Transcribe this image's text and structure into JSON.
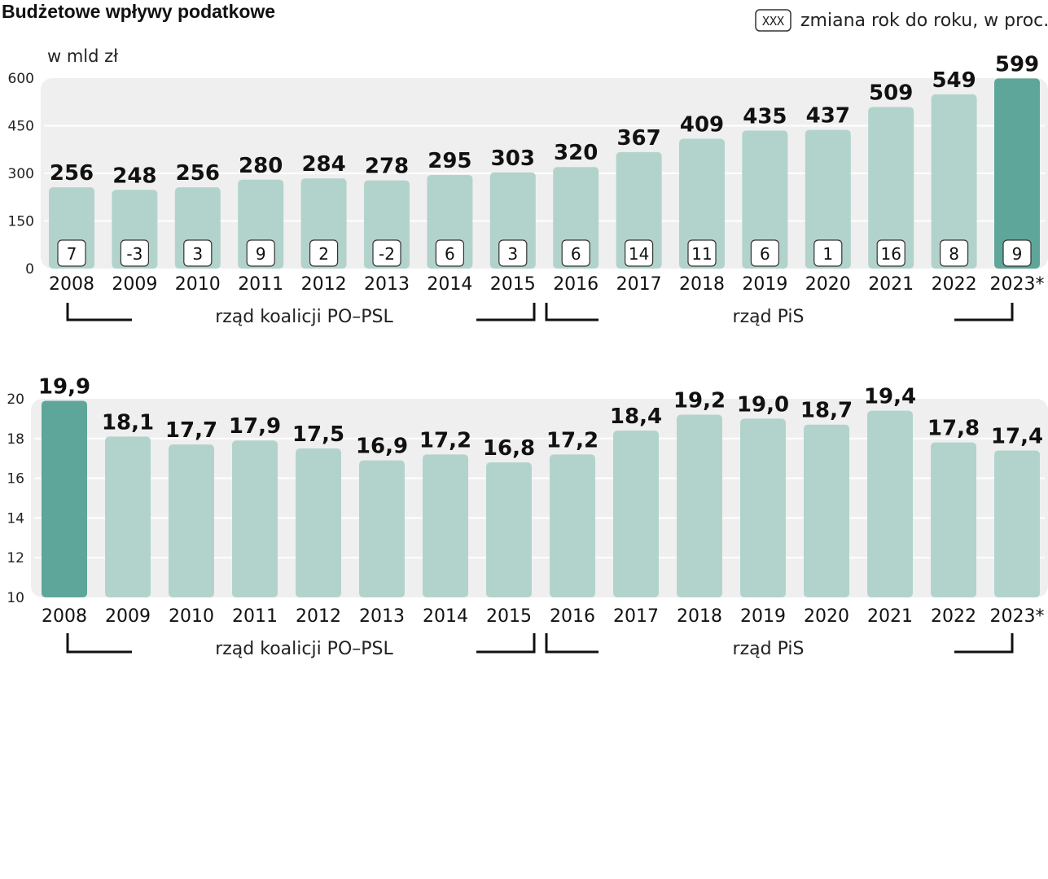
{
  "title": "Budżetowe wpływy podatkowe",
  "legend": {
    "box_text": "XXX",
    "text": "zmiana rok do roku, w proc."
  },
  "colors": {
    "bar": "#b2d3cc",
    "highlight": "#5ea699",
    "panel": "#efefef",
    "grid": "#ffffff",
    "box_border": "#333333"
  },
  "chart_data": [
    {
      "type": "bar",
      "title": "",
      "unit": "w mld zł",
      "categories": [
        "2008",
        "2009",
        "2010",
        "2011",
        "2012",
        "2013",
        "2014",
        "2015",
        "2016",
        "2017",
        "2018",
        "2019",
        "2020",
        "2021",
        "2022",
        "2023*"
      ],
      "values": [
        256,
        248,
        256,
        280,
        284,
        278,
        295,
        303,
        320,
        367,
        409,
        435,
        437,
        509,
        549,
        599
      ],
      "value_labels": [
        "256",
        "248",
        "256",
        "280",
        "284",
        "278",
        "295",
        "303",
        "320",
        "367",
        "409",
        "435",
        "437",
        "509",
        "549",
        "599"
      ],
      "yoy_change": [
        "7",
        "-3",
        "3",
        "9",
        "2",
        "-2",
        "6",
        "3",
        "6",
        "14",
        "11",
        "6",
        "1",
        "16",
        "8",
        "9"
      ],
      "highlight_index": 15,
      "ylim": [
        0,
        600
      ],
      "yticks": [
        "0",
        "150",
        "300",
        "450",
        "600"
      ],
      "ytick_values": [
        0,
        150,
        300,
        450,
        600
      ],
      "grid": true,
      "groups": [
        {
          "label": "rząd koalicji PO–PSL",
          "from": "2008",
          "to": "2015"
        },
        {
          "label": "rząd PiS",
          "from": "2016",
          "to": "2023*"
        }
      ]
    },
    {
      "type": "bar",
      "title": "",
      "categories": [
        "2008",
        "2009",
        "2010",
        "2011",
        "2012",
        "2013",
        "2014",
        "2015",
        "2016",
        "2017",
        "2018",
        "2019",
        "2020",
        "2021",
        "2022",
        "2023*"
      ],
      "values": [
        19.9,
        18.1,
        17.7,
        17.9,
        17.5,
        16.9,
        17.2,
        16.8,
        17.2,
        18.4,
        19.2,
        19.0,
        18.7,
        19.4,
        17.8,
        17.4
      ],
      "value_labels": [
        "19,9",
        "18,1",
        "17,7",
        "17,9",
        "17,5",
        "16,9",
        "17,2",
        "16,8",
        "17,2",
        "18,4",
        "19,2",
        "19,0",
        "18,7",
        "19,4",
        "17,8",
        "17,4"
      ],
      "highlight_index": 0,
      "ylim": [
        10,
        20
      ],
      "yticks": [
        "10",
        "12",
        "14",
        "16",
        "18",
        "20"
      ],
      "ytick_values": [
        10,
        12,
        14,
        16,
        18,
        20
      ],
      "grid": true,
      "groups": [
        {
          "label": "rząd koalicji PO–PSL",
          "from": "2008",
          "to": "2015"
        },
        {
          "label": "rząd PiS",
          "from": "2016",
          "to": "2023*"
        }
      ]
    }
  ]
}
